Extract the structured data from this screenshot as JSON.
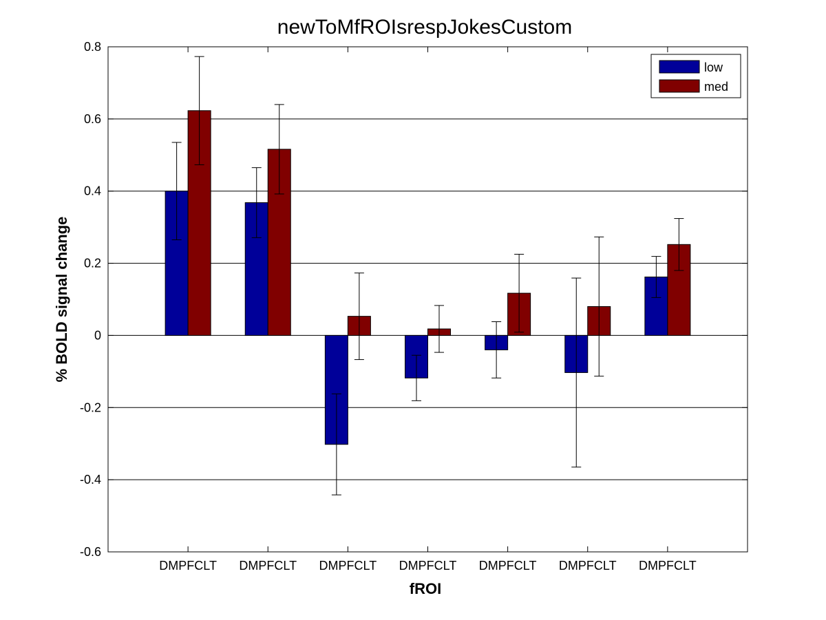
{
  "chart_data": {
    "type": "bar",
    "title": "newToMfROIsrespJokesCustom",
    "xlabel": "fROI",
    "ylabel": "% BOLD signal change",
    "ylim": [
      -0.6,
      0.8
    ],
    "yticks": [
      -0.6,
      -0.4,
      -0.2,
      0,
      0.2,
      0.4,
      0.6,
      0.8
    ],
    "ytick_labels": [
      "-0.6",
      "-0.4",
      "-0.2",
      "0",
      "0.2",
      "0.4",
      "0.6",
      "0.8"
    ],
    "grid": "horizontal",
    "legend_position": "top-right",
    "categories": [
      "DMPFCLT",
      "DMPFCLT",
      "DMPFCLT",
      "DMPFCLT",
      "DMPFCLT",
      "DMPFCLT",
      "DMPFCLT"
    ],
    "series": [
      {
        "name": "low",
        "color": "#000099",
        "values": [
          0.4,
          0.368,
          -0.302,
          -0.118,
          -0.04,
          -0.103,
          0.162
        ],
        "error_bars": [
          0.135,
          0.097,
          0.14,
          0.063,
          0.078,
          0.262,
          0.057
        ]
      },
      {
        "name": "med",
        "color": "#800000",
        "values": [
          0.623,
          0.516,
          0.053,
          0.018,
          0.117,
          0.08,
          0.252
        ],
        "error_bars": [
          0.15,
          0.124,
          0.12,
          0.065,
          0.108,
          0.193,
          0.072
        ]
      }
    ]
  }
}
